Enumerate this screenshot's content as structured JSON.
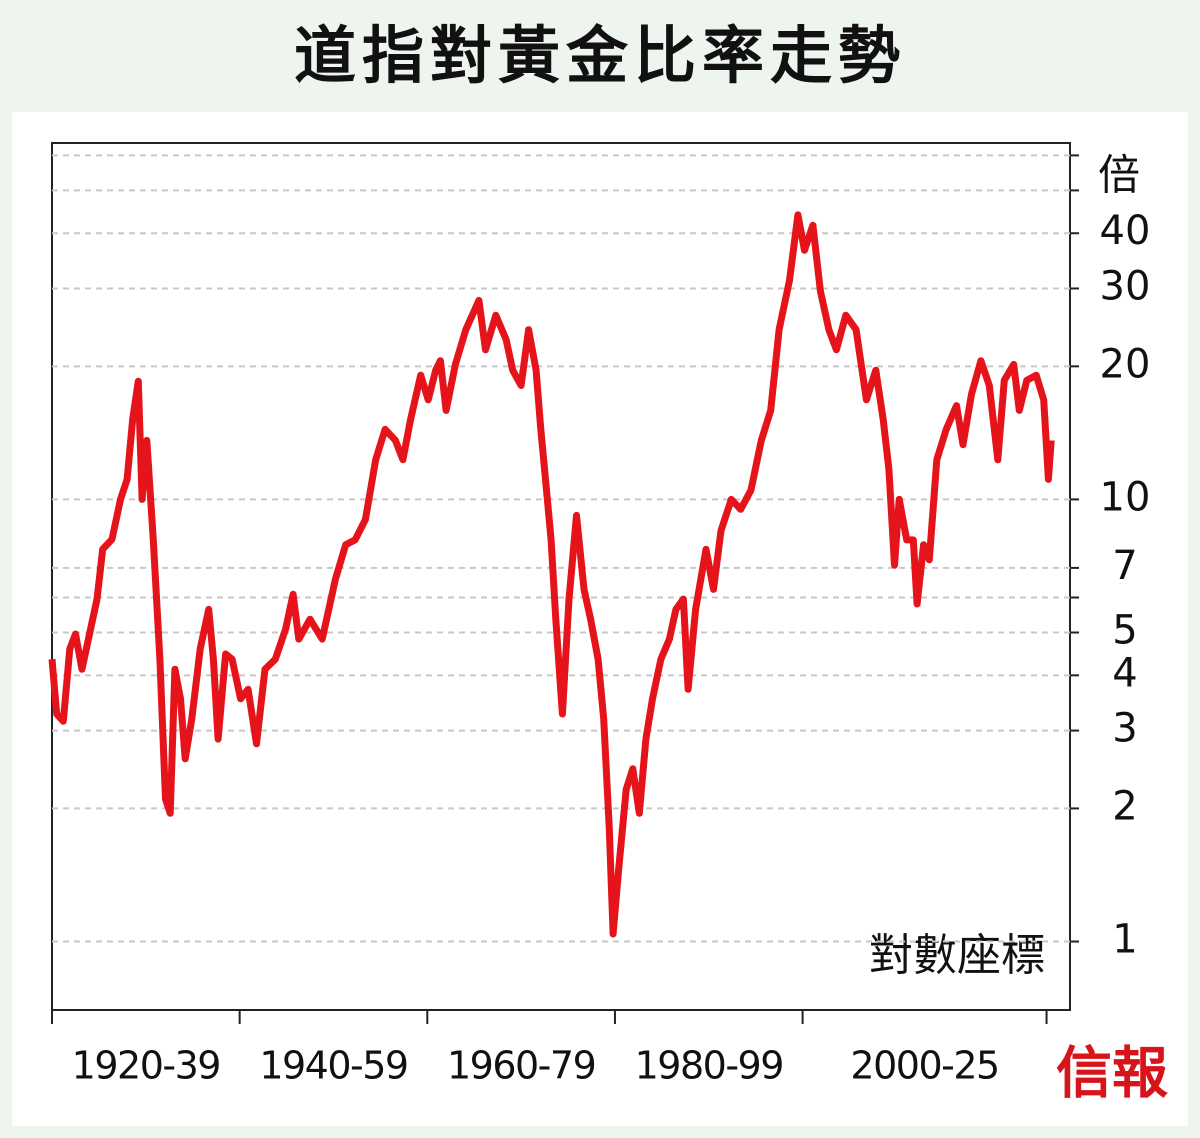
{
  "chart_data": {
    "type": "line",
    "title": "道指對黃金比率走勢",
    "unit_label": "倍",
    "annotation": "對數座標",
    "source_logo": "信報",
    "log_scale": true,
    "grid": true,
    "color": "#e5141b",
    "ylim": [
      0.7,
      64
    ],
    "yticks": [
      1,
      2,
      3,
      4,
      5,
      7,
      10,
      20,
      30,
      40
    ],
    "yminorticks": [
      6,
      50,
      60
    ],
    "xlim": [
      1920,
      2028.5
    ],
    "xticks": [
      1920,
      1940,
      1960,
      1980,
      2000,
      2026
    ],
    "period_labels": [
      "1920-39",
      "1940-59",
      "1960-79",
      "1980-99",
      "2000-25"
    ],
    "x": [
      1920.0,
      1920.5,
      1921.2,
      1921.9,
      1922.5,
      1923.2,
      1924.0,
      1924.8,
      1925.4,
      1926.4,
      1927.3,
      1928.0,
      1928.6,
      1929.2,
      1929.6,
      1930.1,
      1930.8,
      1931.5,
      1932.1,
      1932.6,
      1933.1,
      1933.7,
      1934.2,
      1934.9,
      1935.8,
      1936.7,
      1937.2,
      1937.7,
      1938.5,
      1939.2,
      1940.1,
      1940.9,
      1941.8,
      1942.7,
      1943.8,
      1944.9,
      1945.7,
      1946.3,
      1947.5,
      1948.8,
      1950.2,
      1951.3,
      1952.3,
      1953.4,
      1954.5,
      1955.5,
      1956.6,
      1957.4,
      1958.2,
      1959.3,
      1960.1,
      1960.9,
      1961.4,
      1962.0,
      1963.0,
      1964.1,
      1965.5,
      1966.2,
      1967.3,
      1968.4,
      1969.1,
      1970.0,
      1970.8,
      1971.6,
      1972.1,
      1972.6,
      1973.2,
      1973.7,
      1974.4,
      1975.1,
      1975.9,
      1976.7,
      1977.4,
      1978.2,
      1978.8,
      1979.4,
      1979.8,
      1980.4,
      1981.2,
      1981.9,
      1982.6,
      1983.3,
      1984.0,
      1984.9,
      1985.8,
      1986.5,
      1987.3,
      1987.8,
      1988.6,
      1989.7,
      1990.5,
      1991.3,
      1992.4,
      1993.4,
      1994.5,
      1995.6,
      1996.6,
      1997.5,
      1998.6,
      1999.5,
      2000.2,
      2001.1,
      2001.9,
      2002.8,
      2003.6,
      2004.6,
      2005.7,
      2006.8,
      2007.8,
      2008.6,
      2009.2,
      2009.8,
      2010.3,
      2011.1,
      2011.8,
      2012.2,
      2012.9,
      2013.5,
      2014.3,
      2015.3,
      2016.4,
      2017.1,
      2018.0,
      2019.0,
      2019.9,
      2020.8,
      2021.5,
      2022.5,
      2023.1,
      2023.9,
      2024.9,
      2025.7,
      2026.2,
      2026.5
    ],
    "values": [
      4.35,
      3.27,
      3.15,
      4.59,
      4.96,
      4.13,
      4.96,
      5.95,
      7.71,
      8.13,
      10,
      11.1,
      15.2,
      18.5,
      10,
      13.6,
      8.1,
      4.35,
      2.1,
      1.95,
      4.13,
      3.54,
      2.59,
      3.19,
      4.59,
      5.64,
      4.35,
      2.87,
      4.47,
      4.35,
      3.54,
      3.72,
      2.8,
      4.13,
      4.35,
      5.09,
      6.1,
      4.83,
      5.36,
      4.83,
      6.6,
      7.9,
      8.1,
      9.0,
      12.3,
      14.4,
      13.6,
      12.3,
      15.1,
      19.1,
      16.8,
      19.6,
      20.6,
      15.9,
      20.2,
      24.2,
      28.2,
      21.8,
      26.1,
      23,
      19.6,
      18.1,
      24.2,
      19.6,
      14.4,
      11.1,
      8.1,
      5.36,
      3.27,
      5.95,
      9.2,
      6.26,
      5.36,
      4.35,
      3.19,
      1.8,
      1.04,
      1.46,
      2.21,
      2.46,
      1.95,
      2.87,
      3.54,
      4.35,
      4.83,
      5.64,
      5.95,
      3.72,
      5.64,
      7.71,
      6.26,
      8.5,
      10,
      9.5,
      10.5,
      13.6,
      15.9,
      24.2,
      31.3,
      44,
      36.6,
      41.7,
      29.6,
      24.2,
      21.8,
      26.1,
      24.2,
      16.8,
      19.6,
      15.1,
      11.7,
      7.1,
      10,
      8.1,
      8.1,
      5.8,
      7.9,
      7.3,
      12.3,
      14.4,
      16.3,
      13.3,
      17.3,
      20.6,
      18.1,
      12.3,
      18.6,
      20.2,
      15.9,
      18.6,
      19.1,
      16.8,
      11.1,
      13.6
    ]
  }
}
